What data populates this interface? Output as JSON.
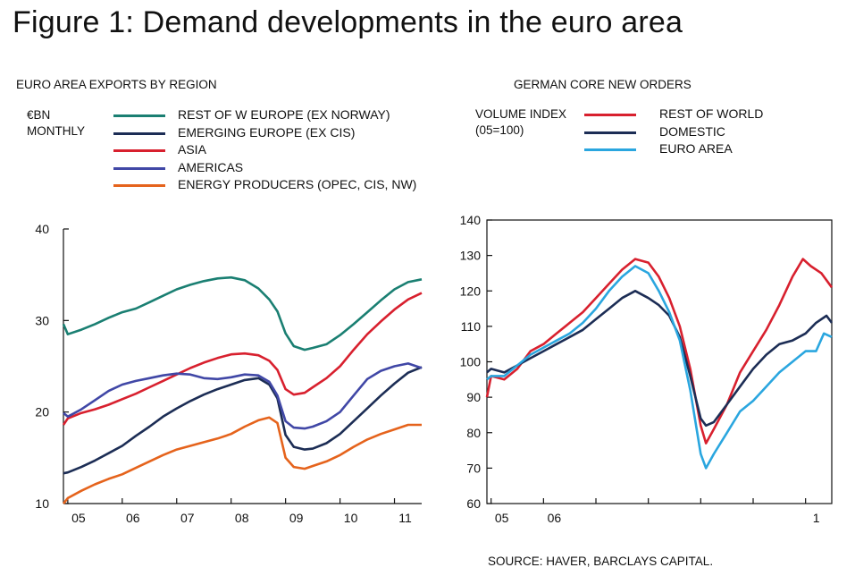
{
  "figure_title": "Figure 1: Demand developments in the euro area",
  "source": "SOURCE: HAVER, BARCLAYS CAPITAL.",
  "chart_data": [
    {
      "type": "line",
      "title": "EURO AREA EXPORTS BY REGION",
      "ylabel_lines": [
        "€BN",
        "MONTHLY"
      ],
      "ylim": [
        10,
        40
      ],
      "xlim": [
        2004.92,
        2011.5
      ],
      "yticks": [
        10,
        20,
        30,
        40
      ],
      "xticks": [
        {
          "label": "05",
          "value": 2005
        },
        {
          "label": "06",
          "value": 2006
        },
        {
          "label": "07",
          "value": 2007
        },
        {
          "label": "08",
          "value": 2008
        },
        {
          "label": "09",
          "value": 2009
        },
        {
          "label": "10",
          "value": 2010
        },
        {
          "label": "11",
          "value": 2011
        }
      ],
      "series": [
        {
          "name": "REST OF W EUROPE (EX NORWAY)",
          "color": "#1a7f72",
          "points": [
            [
              2004.92,
              29.6
            ],
            [
              2005.0,
              28.5
            ],
            [
              2005.25,
              29.0
            ],
            [
              2005.5,
              29.6
            ],
            [
              2005.75,
              30.3
            ],
            [
              2006.0,
              30.9
            ],
            [
              2006.25,
              31.3
            ],
            [
              2006.5,
              32.0
            ],
            [
              2006.75,
              32.7
            ],
            [
              2007.0,
              33.4
            ],
            [
              2007.25,
              33.9
            ],
            [
              2007.5,
              34.3
            ],
            [
              2007.75,
              34.6
            ],
            [
              2008.0,
              34.7
            ],
            [
              2008.25,
              34.4
            ],
            [
              2008.5,
              33.5
            ],
            [
              2008.7,
              32.3
            ],
            [
              2008.85,
              31.0
            ],
            [
              2009.0,
              28.6
            ],
            [
              2009.15,
              27.2
            ],
            [
              2009.35,
              26.8
            ],
            [
              2009.5,
              27.0
            ],
            [
              2009.75,
              27.4
            ],
            [
              2010.0,
              28.4
            ],
            [
              2010.25,
              29.6
            ],
            [
              2010.5,
              30.9
            ],
            [
              2010.75,
              32.2
            ],
            [
              2011.0,
              33.4
            ],
            [
              2011.25,
              34.2
            ],
            [
              2011.5,
              34.5
            ]
          ]
        },
        {
          "name": "EMERGING EUROPE (EX CIS)",
          "color": "#1c2d55",
          "points": [
            [
              2004.92,
              13.3
            ],
            [
              2005.0,
              13.4
            ],
            [
              2005.25,
              14.0
            ],
            [
              2005.5,
              14.7
            ],
            [
              2005.75,
              15.5
            ],
            [
              2006.0,
              16.3
            ],
            [
              2006.25,
              17.4
            ],
            [
              2006.5,
              18.4
            ],
            [
              2006.75,
              19.5
            ],
            [
              2007.0,
              20.4
            ],
            [
              2007.25,
              21.2
            ],
            [
              2007.5,
              21.9
            ],
            [
              2007.75,
              22.5
            ],
            [
              2008.0,
              23.0
            ],
            [
              2008.25,
              23.5
            ],
            [
              2008.5,
              23.7
            ],
            [
              2008.7,
              23.0
            ],
            [
              2008.85,
              21.5
            ],
            [
              2009.0,
              17.5
            ],
            [
              2009.15,
              16.2
            ],
            [
              2009.35,
              15.9
            ],
            [
              2009.5,
              16.0
            ],
            [
              2009.75,
              16.6
            ],
            [
              2010.0,
              17.6
            ],
            [
              2010.25,
              19.0
            ],
            [
              2010.5,
              20.4
            ],
            [
              2010.75,
              21.8
            ],
            [
              2011.0,
              23.1
            ],
            [
              2011.25,
              24.3
            ],
            [
              2011.5,
              24.9
            ]
          ]
        },
        {
          "name": "ASIA",
          "color": "#d8202e",
          "points": [
            [
              2004.92,
              18.6
            ],
            [
              2005.0,
              19.3
            ],
            [
              2005.25,
              19.9
            ],
            [
              2005.5,
              20.3
            ],
            [
              2005.75,
              20.8
            ],
            [
              2006.0,
              21.4
            ],
            [
              2006.25,
              22.0
            ],
            [
              2006.5,
              22.7
            ],
            [
              2006.75,
              23.4
            ],
            [
              2007.0,
              24.1
            ],
            [
              2007.25,
              24.8
            ],
            [
              2007.5,
              25.4
            ],
            [
              2007.75,
              25.9
            ],
            [
              2008.0,
              26.3
            ],
            [
              2008.25,
              26.4
            ],
            [
              2008.5,
              26.2
            ],
            [
              2008.7,
              25.6
            ],
            [
              2008.85,
              24.6
            ],
            [
              2009.0,
              22.5
            ],
            [
              2009.15,
              21.9
            ],
            [
              2009.35,
              22.1
            ],
            [
              2009.5,
              22.7
            ],
            [
              2009.75,
              23.7
            ],
            [
              2010.0,
              25.0
            ],
            [
              2010.25,
              26.8
            ],
            [
              2010.5,
              28.5
            ],
            [
              2010.75,
              29.9
            ],
            [
              2011.0,
              31.2
            ],
            [
              2011.25,
              32.3
            ],
            [
              2011.5,
              33.0
            ]
          ]
        },
        {
          "name": "AMERICAS",
          "color": "#4047a6",
          "points": [
            [
              2004.92,
              19.9
            ],
            [
              2005.0,
              19.5
            ],
            [
              2005.25,
              20.3
            ],
            [
              2005.5,
              21.3
            ],
            [
              2005.75,
              22.3
            ],
            [
              2006.0,
              23.0
            ],
            [
              2006.25,
              23.4
            ],
            [
              2006.5,
              23.7
            ],
            [
              2006.75,
              24.0
            ],
            [
              2007.0,
              24.2
            ],
            [
              2007.25,
              24.1
            ],
            [
              2007.5,
              23.7
            ],
            [
              2007.75,
              23.6
            ],
            [
              2008.0,
              23.8
            ],
            [
              2008.25,
              24.1
            ],
            [
              2008.5,
              24.0
            ],
            [
              2008.7,
              23.3
            ],
            [
              2008.85,
              21.8
            ],
            [
              2009.0,
              19.0
            ],
            [
              2009.15,
              18.3
            ],
            [
              2009.35,
              18.2
            ],
            [
              2009.5,
              18.4
            ],
            [
              2009.75,
              19.0
            ],
            [
              2010.0,
              20.0
            ],
            [
              2010.25,
              21.8
            ],
            [
              2010.5,
              23.6
            ],
            [
              2010.75,
              24.5
            ],
            [
              2011.0,
              25.0
            ],
            [
              2011.25,
              25.3
            ],
            [
              2011.5,
              24.8
            ]
          ]
        },
        {
          "name": "ENERGY PRODUCERS (OPEC, CIS, NW)",
          "color": "#e5631c",
          "points": [
            [
              2004.92,
              10.0
            ],
            [
              2005.0,
              10.6
            ],
            [
              2005.25,
              11.4
            ],
            [
              2005.5,
              12.1
            ],
            [
              2005.75,
              12.7
            ],
            [
              2006.0,
              13.2
            ],
            [
              2006.25,
              13.9
            ],
            [
              2006.5,
              14.6
            ],
            [
              2006.75,
              15.3
            ],
            [
              2007.0,
              15.9
            ],
            [
              2007.25,
              16.3
            ],
            [
              2007.5,
              16.7
            ],
            [
              2007.75,
              17.1
            ],
            [
              2008.0,
              17.6
            ],
            [
              2008.25,
              18.4
            ],
            [
              2008.5,
              19.1
            ],
            [
              2008.7,
              19.4
            ],
            [
              2008.85,
              18.8
            ],
            [
              2009.0,
              15.0
            ],
            [
              2009.15,
              14.0
            ],
            [
              2009.35,
              13.8
            ],
            [
              2009.5,
              14.1
            ],
            [
              2009.75,
              14.6
            ],
            [
              2010.0,
              15.3
            ],
            [
              2010.25,
              16.2
            ],
            [
              2010.5,
              17.0
            ],
            [
              2010.75,
              17.6
            ],
            [
              2011.0,
              18.1
            ],
            [
              2011.25,
              18.6
            ],
            [
              2011.5,
              18.6
            ]
          ]
        }
      ]
    },
    {
      "type": "line",
      "title": "GERMAN CORE NEW ORDERS",
      "ylabel_lines": [
        "VOLUME INDEX",
        "(05=100)"
      ],
      "ylim": [
        60,
        140
      ],
      "xlim": [
        2004.92,
        2011.5
      ],
      "yticks": [
        60,
        70,
        80,
        90,
        100,
        110,
        120,
        130,
        140
      ],
      "xticks": [
        {
          "label": "05",
          "value": 2005
        },
        {
          "label": "06",
          "value": 2006
        },
        {
          "label": "",
          "value": 2007
        },
        {
          "label": "",
          "value": 2008
        },
        {
          "label": "",
          "value": 2009
        },
        {
          "label": "",
          "value": 2010
        },
        {
          "label": "1",
          "value": 2011
        }
      ],
      "series": [
        {
          "name": "REST OF WORLD",
          "color": "#d8202e",
          "points": [
            [
              2004.92,
              90
            ],
            [
              2005.0,
              96
            ],
            [
              2005.25,
              95
            ],
            [
              2005.5,
              98
            ],
            [
              2005.75,
              103
            ],
            [
              2006.0,
              105
            ],
            [
              2006.25,
              108
            ],
            [
              2006.5,
              111
            ],
            [
              2006.75,
              114
            ],
            [
              2007.0,
              118
            ],
            [
              2007.25,
              122
            ],
            [
              2007.5,
              126
            ],
            [
              2007.75,
              129
            ],
            [
              2008.0,
              128
            ],
            [
              2008.2,
              124
            ],
            [
              2008.4,
              118
            ],
            [
              2008.6,
              110
            ],
            [
              2008.8,
              98
            ],
            [
              2009.0,
              82
            ],
            [
              2009.1,
              77
            ],
            [
              2009.25,
              81
            ],
            [
              2009.5,
              88
            ],
            [
              2009.75,
              97
            ],
            [
              2010.0,
              103
            ],
            [
              2010.25,
              109
            ],
            [
              2010.5,
              116
            ],
            [
              2010.75,
              124
            ],
            [
              2010.95,
              129
            ],
            [
              2011.1,
              127
            ],
            [
              2011.3,
              125
            ],
            [
              2011.5,
              121
            ]
          ]
        },
        {
          "name": "DOMESTIC",
          "color": "#1c2d55",
          "points": [
            [
              2004.92,
              97
            ],
            [
              2005.0,
              98
            ],
            [
              2005.25,
              97
            ],
            [
              2005.5,
              99
            ],
            [
              2005.75,
              101
            ],
            [
              2006.0,
              103
            ],
            [
              2006.25,
              105
            ],
            [
              2006.5,
              107
            ],
            [
              2006.75,
              109
            ],
            [
              2007.0,
              112
            ],
            [
              2007.25,
              115
            ],
            [
              2007.5,
              118
            ],
            [
              2007.75,
              120
            ],
            [
              2008.0,
              118
            ],
            [
              2008.2,
              116
            ],
            [
              2008.4,
              113
            ],
            [
              2008.6,
              107
            ],
            [
              2008.8,
              96
            ],
            [
              2009.0,
              84
            ],
            [
              2009.1,
              82
            ],
            [
              2009.25,
              83
            ],
            [
              2009.5,
              88
            ],
            [
              2009.75,
              93
            ],
            [
              2010.0,
              98
            ],
            [
              2010.25,
              102
            ],
            [
              2010.5,
              105
            ],
            [
              2010.75,
              106
            ],
            [
              2011.0,
              108
            ],
            [
              2011.2,
              111
            ],
            [
              2011.4,
              113
            ],
            [
              2011.5,
              111
            ]
          ]
        },
        {
          "name": "EURO AREA",
          "color": "#2aa6df",
          "points": [
            [
              2004.92,
              95
            ],
            [
              2005.0,
              96
            ],
            [
              2005.25,
              96
            ],
            [
              2005.5,
              99
            ],
            [
              2005.75,
              102
            ],
            [
              2006.0,
              104
            ],
            [
              2006.25,
              106
            ],
            [
              2006.5,
              108
            ],
            [
              2006.75,
              111
            ],
            [
              2007.0,
              115
            ],
            [
              2007.25,
              120
            ],
            [
              2007.5,
              124
            ],
            [
              2007.75,
              127
            ],
            [
              2008.0,
              125
            ],
            [
              2008.2,
              120
            ],
            [
              2008.4,
              114
            ],
            [
              2008.6,
              106
            ],
            [
              2008.8,
              92
            ],
            [
              2009.0,
              74
            ],
            [
              2009.1,
              70
            ],
            [
              2009.25,
              74
            ],
            [
              2009.5,
              80
            ],
            [
              2009.75,
              86
            ],
            [
              2010.0,
              89
            ],
            [
              2010.25,
              93
            ],
            [
              2010.5,
              97
            ],
            [
              2010.75,
              100
            ],
            [
              2011.0,
              103
            ],
            [
              2011.2,
              103
            ],
            [
              2011.35,
              108
            ],
            [
              2011.5,
              107
            ]
          ]
        }
      ]
    }
  ]
}
